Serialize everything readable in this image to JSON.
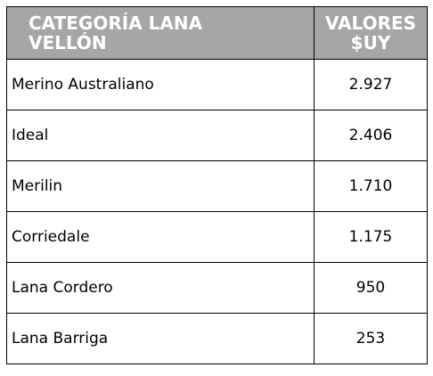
{
  "table": {
    "header": [
      "CATEGORÍA LANA VELLÓN",
      "VALORES $UY"
    ],
    "rows": [
      [
        "Merino Australiano",
        "2.927"
      ],
      [
        "Ideal",
        "2.406"
      ],
      [
        "Merilin",
        "1.710"
      ],
      [
        "Corriedale",
        "1.175"
      ],
      [
        "Lana Cordero",
        "950"
      ],
      [
        "Lana Barriga",
        "253"
      ]
    ]
  }
}
